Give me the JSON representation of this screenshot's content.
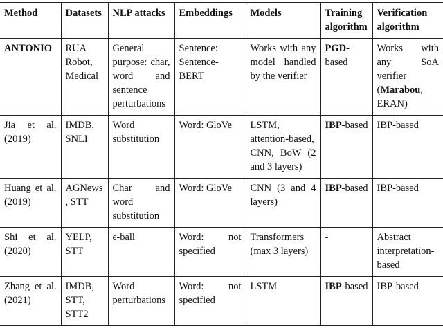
{
  "table": {
    "header": [
      "Method",
      "Datasets",
      "NLP attacks",
      "Embeddings",
      "Models",
      "Training algorithm",
      "Verification algorithm"
    ],
    "rows": [
      [
        [
          {
            "bold": "ANTONIO"
          }
        ],
        [
          "RUA Robot, Medical"
        ],
        [
          "General purpose: char, word and sentence perturbations"
        ],
        [
          "Sentence: Sentence-BERT"
        ],
        [
          "Works with any model handled by the verifier"
        ],
        [
          {
            "bold": "PGD"
          },
          "-based"
        ],
        [
          "Works with any SoA verifier (",
          {
            "bold": "Marabou"
          },
          ", ERAN)"
        ]
      ],
      [
        [
          "Jia et al. (2019)"
        ],
        [
          "IMDB, SNLI"
        ],
        [
          "Word substitution"
        ],
        [
          "Word: GloVe"
        ],
        [
          "LSTM, attention-based, CNN, BoW (2 and 3 layers)"
        ],
        [
          {
            "bold": "IBP"
          },
          "-based"
        ],
        [
          "IBP-based"
        ]
      ],
      [
        [
          "Huang et al. (2019)"
        ],
        [
          "AGNews, STT"
        ],
        [
          "Char and word substitution"
        ],
        [
          "Word: GloVe"
        ],
        [
          "CNN (3 and 4 layers)"
        ],
        [
          {
            "bold": "IBP"
          },
          "-based"
        ],
        [
          "IBP-based"
        ]
      ],
      [
        [
          "Shi et al. (2020)"
        ],
        [
          "YELP, STT"
        ],
        [
          "ϵ-ball"
        ],
        [
          "Word: not specified"
        ],
        [
          "Transformers (max 3 layers)"
        ],
        [
          "-"
        ],
        [
          "Abstract interpretation-based"
        ]
      ],
      [
        [
          "Zhang et al. (2021)"
        ],
        [
          "IMDB, STT, STT2"
        ],
        [
          "Word perturbations"
        ],
        [
          "Word: not specified"
        ],
        [
          "LSTM"
        ],
        [
          {
            "bold": "IBP"
          },
          "-based"
        ],
        [
          "IBP-based"
        ]
      ]
    ]
  }
}
